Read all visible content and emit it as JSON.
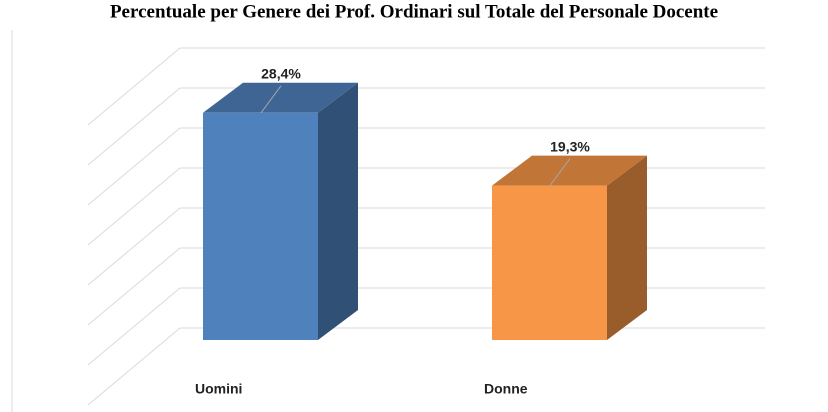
{
  "chart_data": {
    "type": "bar3d",
    "title": "Percentuale per Genere dei Prof. Ordinari sul Totale del Personale Docente",
    "categories": [
      "Uomini",
      "Donne"
    ],
    "values": [
      28.4,
      19.3
    ],
    "value_labels": [
      "28,4%",
      "19,3%"
    ],
    "colors": [
      "#4f81bd",
      "#f79646"
    ],
    "ylim": [
      0,
      35
    ],
    "yticks": [
      0,
      5,
      10,
      15,
      20,
      25,
      30,
      35
    ],
    "grid": true
  }
}
